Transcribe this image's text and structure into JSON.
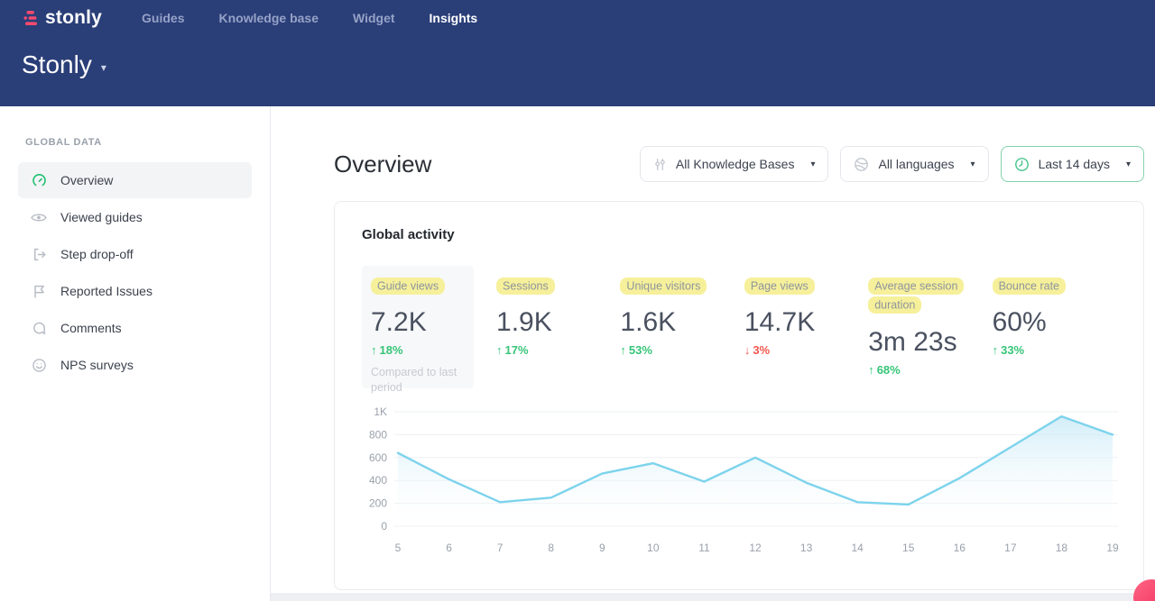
{
  "header": {
    "logo_text": "stonly",
    "nav": [
      {
        "label": "Guides"
      },
      {
        "label": "Knowledge base"
      },
      {
        "label": "Widget"
      },
      {
        "label": "Insights"
      }
    ],
    "workspace_name": "Stonly"
  },
  "sidebar": {
    "section_title": "GLOBAL DATA",
    "items": [
      {
        "label": "Overview",
        "icon": "gauge-icon"
      },
      {
        "label": "Viewed guides",
        "icon": "eye-icon"
      },
      {
        "label": "Step drop-off",
        "icon": "step-dropoff-icon"
      },
      {
        "label": "Reported Issues",
        "icon": "flag-icon"
      },
      {
        "label": "Comments",
        "icon": "comment-icon"
      },
      {
        "label": "NPS surveys",
        "icon": "smiley-icon"
      }
    ]
  },
  "main": {
    "title": "Overview",
    "filters": [
      {
        "label": "All Knowledge Bases",
        "icon": "sliders-icon"
      },
      {
        "label": "All languages",
        "icon": "globe-icon"
      },
      {
        "label": "Last 14 days",
        "icon": "clock-icon"
      }
    ],
    "card": {
      "title": "Global activity",
      "metrics": [
        {
          "label": "Guide views",
          "value": "7.2K",
          "arrow": "↑",
          "delta": "18%",
          "direction": "up",
          "note": "Compared to last period"
        },
        {
          "label": "Sessions",
          "value": "1.9K",
          "arrow": "↑",
          "delta": "17%",
          "direction": "up"
        },
        {
          "label": "Unique visitors",
          "value": "1.6K",
          "arrow": "↑",
          "delta": "53%",
          "direction": "up"
        },
        {
          "label": "Page views",
          "value": "14.7K",
          "arrow": "↓",
          "delta": "3%",
          "direction": "down"
        },
        {
          "label": "Average session duration",
          "value": "3m 23s",
          "arrow": "↑",
          "delta": "68%",
          "direction": "up"
        },
        {
          "label": "Bounce rate",
          "value": "60%",
          "arrow": "↑",
          "delta": "33%",
          "direction": "up"
        }
      ]
    }
  },
  "chart_data": {
    "type": "area",
    "title": "Global activity",
    "x": [
      5,
      6,
      7,
      8,
      9,
      10,
      11,
      12,
      13,
      14,
      15,
      16,
      17,
      18,
      19
    ],
    "series": [
      {
        "name": "Guide views",
        "values": [
          640,
          410,
          210,
          250,
          460,
          550,
          390,
          600,
          380,
          210,
          190,
          420,
          690,
          960,
          800
        ]
      }
    ],
    "ylim": [
      0,
      1000
    ],
    "yticks": [
      "0",
      "200",
      "400",
      "600",
      "800",
      "1K"
    ],
    "xlabel": "",
    "ylabel": "",
    "grid": true,
    "legend": "none",
    "line_color": "#7dd3ec",
    "fill_color": "#bfe6f5"
  },
  "colors": {
    "header_bg": "#2a3e78",
    "accent_green": "#36c578",
    "accent_red": "#f2564d",
    "highlight_yellow": "#f6f09b",
    "logo_pink": "#f54a6e",
    "filter_accent_border": "#82d3ab"
  }
}
